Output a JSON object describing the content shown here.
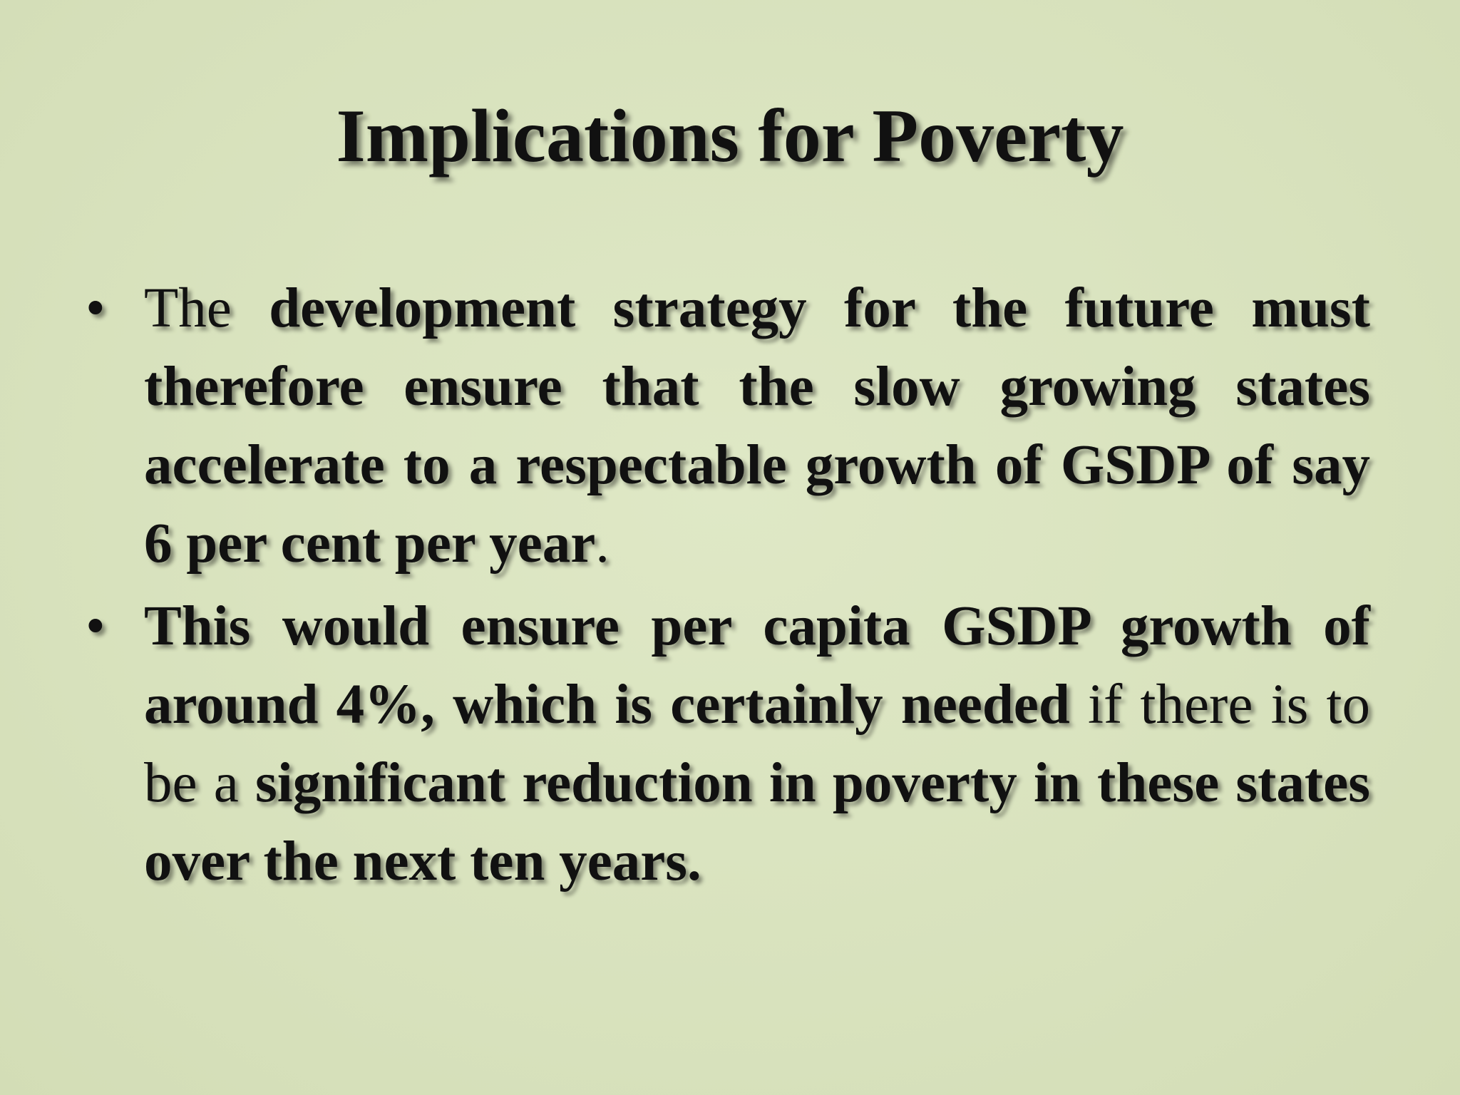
{
  "slide": {
    "title": "Implications for Poverty",
    "bullet_symbol": "•",
    "bullets": [
      {
        "runs": [
          {
            "text": "The ",
            "bold": false
          },
          {
            "text": "development strategy for the future must therefore ensure that the slow growing states accelerate to a respectable growth of GSDP of say 6 per cent per year",
            "bold": true
          },
          {
            "text": ".",
            "bold": false
          }
        ]
      },
      {
        "runs": [
          {
            "text": " This would ensure per capita GSDP growth of around 4%, which is certainly needed",
            "bold": true
          },
          {
            "text": " if there is to be a ",
            "bold": false
          },
          {
            "text": "significant reduction in poverty in these states over the next ten years.",
            "bold": true
          }
        ]
      }
    ]
  }
}
